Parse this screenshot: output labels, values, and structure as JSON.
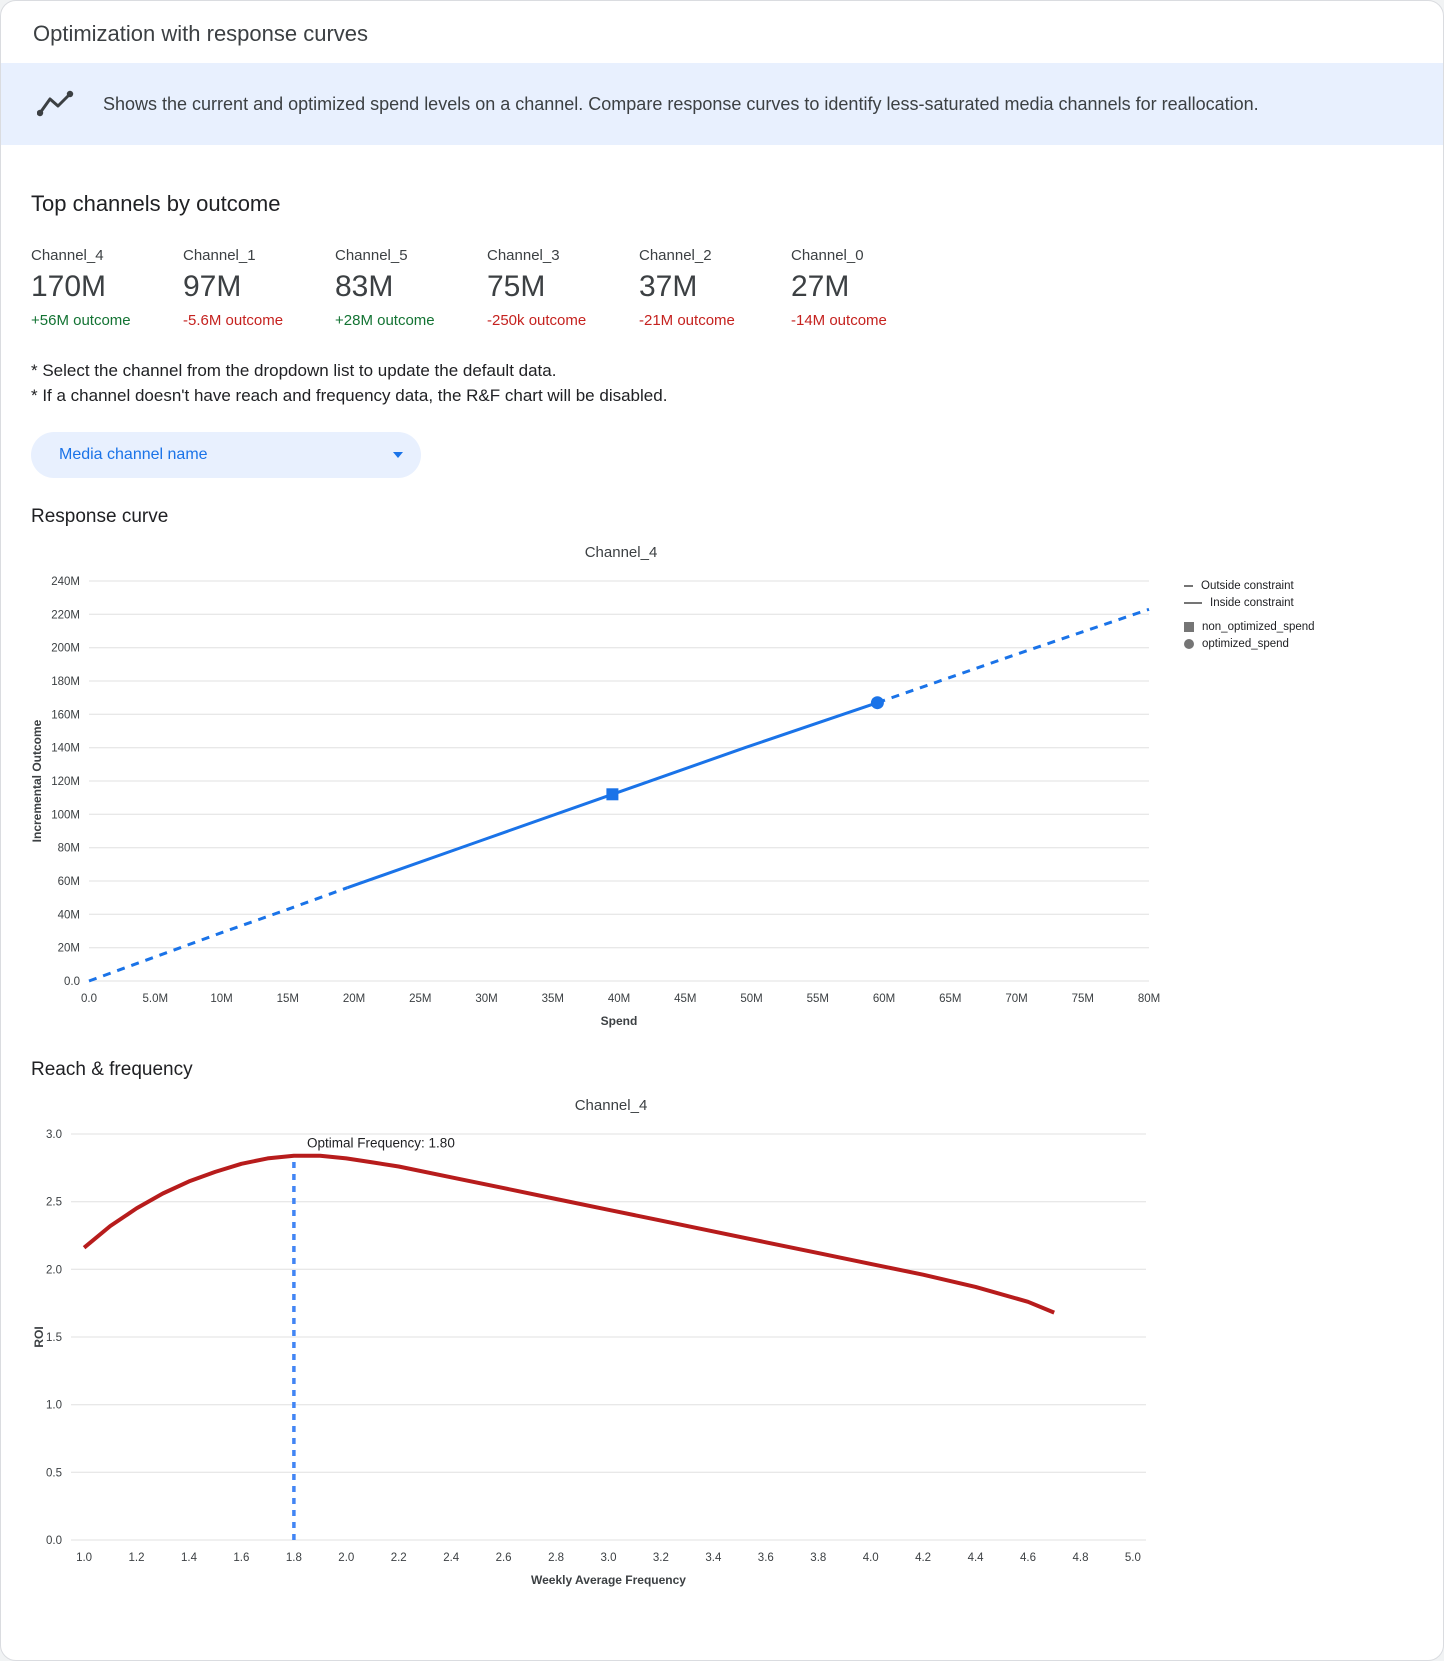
{
  "header": {
    "title": "Optimization with response curves"
  },
  "banner": {
    "text": "Shows the current and optimized spend levels on a channel. Compare response curves to identify less-saturated media channels for reallocation."
  },
  "top_channels": {
    "heading": "Top channels by outcome",
    "items": [
      {
        "name": "Channel_4",
        "value": "170M",
        "delta": "+56M outcome"
      },
      {
        "name": "Channel_1",
        "value": "97M",
        "delta": "-5.6M outcome"
      },
      {
        "name": "Channel_5",
        "value": "83M",
        "delta": "+28M outcome"
      },
      {
        "name": "Channel_3",
        "value": "75M",
        "delta": "-250k outcome"
      },
      {
        "name": "Channel_2",
        "value": "37M",
        "delta": "-21M outcome"
      },
      {
        "name": "Channel_0",
        "value": "27M",
        "delta": "-14M outcome"
      }
    ]
  },
  "notes": [
    "* Select the channel from the dropdown list to update the default data.",
    "* If a channel doesn't have reach and frequency data, the R&F chart will be disabled."
  ],
  "dropdown": {
    "label": "Media channel name"
  },
  "sections": {
    "response_curve": "Response curve",
    "reach_frequency": "Reach & frequency"
  },
  "colors": {
    "accent_blue": "#1a73e8",
    "banner_bg": "#e8f0fe",
    "positive_green": "#137333",
    "negative_red": "#c5221f",
    "curve_red": "#b71c1c",
    "vline_blue": "#4285f4",
    "legend_gray": "#757575"
  },
  "chart_data": [
    {
      "type": "line",
      "title": "Channel_4",
      "xlabel": "Spend",
      "ylabel": "Incremental Outcome",
      "xlim": [
        0,
        80000000
      ],
      "ylim": [
        0,
        240000000
      ],
      "grid": "horizontal",
      "legend_position": "right",
      "xticks": [
        0,
        5000000,
        10000000,
        15000000,
        20000000,
        25000000,
        30000000,
        35000000,
        40000000,
        45000000,
        50000000,
        55000000,
        60000000,
        65000000,
        70000000,
        75000000,
        80000000
      ],
      "xtick_labels": [
        "0.0",
        "5.0M",
        "10M",
        "15M",
        "20M",
        "25M",
        "30M",
        "35M",
        "40M",
        "45M",
        "50M",
        "55M",
        "60M",
        "65M",
        "70M",
        "75M",
        "80M"
      ],
      "yticks": [
        0,
        20000000,
        40000000,
        60000000,
        80000000,
        100000000,
        120000000,
        140000000,
        160000000,
        180000000,
        200000000,
        220000000,
        240000000
      ],
      "ytick_labels": [
        "0.0",
        "20M",
        "40M",
        "60M",
        "80M",
        "100M",
        "120M",
        "140M",
        "160M",
        "180M",
        "200M",
        "220M",
        "240M"
      ],
      "line_color": "#1a73e8",
      "series": [
        {
          "name": "Outside constraint (below)",
          "style": "dashed",
          "width": 3,
          "points": [
            [
              0,
              0
            ],
            [
              5000000,
              14500000
            ],
            [
              10000000,
              29000000
            ],
            [
              15000000,
              43000000
            ],
            [
              19500000,
              56000000
            ]
          ]
        },
        {
          "name": "Inside constraint",
          "style": "solid",
          "width": 3,
          "points": [
            [
              19500000,
              56000000
            ],
            [
              29500000,
              84000000
            ],
            [
              39500000,
              112000000
            ],
            [
              49500000,
              140000000
            ],
            [
              59500000,
              167000000
            ]
          ]
        },
        {
          "name": "Outside constraint (above)",
          "style": "dashed",
          "width": 3,
          "points": [
            [
              59500000,
              167000000
            ],
            [
              70000000,
              196000000
            ],
            [
              80000000,
              223000000
            ]
          ]
        }
      ],
      "markers": [
        {
          "name": "non_optimized_spend",
          "shape": "square",
          "x": 39500000,
          "y": 112000000
        },
        {
          "name": "optimized_spend",
          "shape": "circle",
          "x": 59500000,
          "y": 167000000
        }
      ],
      "legend": [
        {
          "label": "Outside constraint",
          "swatch": "dash"
        },
        {
          "label": "Inside constraint",
          "swatch": "line"
        },
        {
          "label": "non_optimized_spend",
          "swatch": "square"
        },
        {
          "label": "optimized_spend",
          "swatch": "circle"
        }
      ]
    },
    {
      "type": "line",
      "title": "Channel_4",
      "xlabel": "Weekly Average Frequency",
      "ylabel": "ROI",
      "xlim": [
        0.95,
        5.05
      ],
      "ylim": [
        0,
        3.0
      ],
      "grid": "horizontal",
      "xticks": [
        1.0,
        1.2,
        1.4,
        1.6,
        1.8,
        2.0,
        2.2,
        2.4,
        2.6,
        2.8,
        3.0,
        3.2,
        3.4,
        3.6,
        3.8,
        4.0,
        4.2,
        4.4,
        4.6,
        4.8,
        5.0
      ],
      "xtick_labels": [
        "1.0",
        "1.2",
        "1.4",
        "1.6",
        "1.8",
        "2.0",
        "2.2",
        "2.4",
        "2.6",
        "2.8",
        "3.0",
        "3.2",
        "3.4",
        "3.6",
        "3.8",
        "4.0",
        "4.2",
        "4.4",
        "4.6",
        "4.8",
        "5.0"
      ],
      "yticks": [
        0,
        0.5,
        1.0,
        1.5,
        2.0,
        2.5,
        3.0
      ],
      "ytick_labels": [
        "0.0",
        "0.5",
        "1.0",
        "1.5",
        "2.0",
        "2.5",
        "3.0"
      ],
      "line_color": "#b71c1c",
      "series": [
        {
          "name": "ROI vs frequency",
          "style": "solid",
          "width": 4,
          "points": [
            [
              1.0,
              2.16
            ],
            [
              1.1,
              2.32
            ],
            [
              1.2,
              2.45
            ],
            [
              1.3,
              2.56
            ],
            [
              1.4,
              2.65
            ],
            [
              1.5,
              2.72
            ],
            [
              1.6,
              2.78
            ],
            [
              1.7,
              2.82
            ],
            [
              1.8,
              2.84
            ],
            [
              1.9,
              2.84
            ],
            [
              2.0,
              2.82
            ],
            [
              2.1,
              2.79
            ],
            [
              2.2,
              2.76
            ],
            [
              2.4,
              2.68
            ],
            [
              2.6,
              2.6
            ],
            [
              2.8,
              2.52
            ],
            [
              3.0,
              2.44
            ],
            [
              3.2,
              2.36
            ],
            [
              3.4,
              2.28
            ],
            [
              3.6,
              2.2
            ],
            [
              3.8,
              2.12
            ],
            [
              4.0,
              2.04
            ],
            [
              4.2,
              1.96
            ],
            [
              4.4,
              1.87
            ],
            [
              4.6,
              1.76
            ],
            [
              4.7,
              1.68
            ]
          ]
        }
      ],
      "vline": {
        "x": 1.8,
        "y_from": 0,
        "y_to": 2.85,
        "color": "#4285f4",
        "style": "dashed"
      },
      "annotation": {
        "text": "Optimal Frequency: 1.80",
        "x": 1.85,
        "y": 2.9
      }
    }
  ]
}
